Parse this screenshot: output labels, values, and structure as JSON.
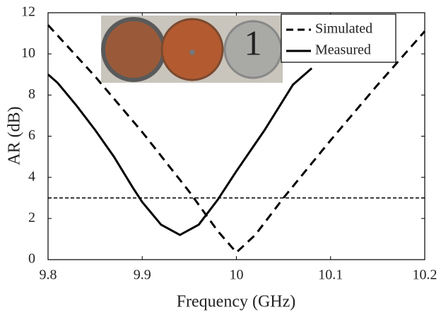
{
  "chart_data": {
    "type": "line",
    "xlabel": "Frequency (GHz)",
    "ylabel": "AR (dB)",
    "xlim": [
      9.8,
      10.2
    ],
    "xticks": [
      9.8,
      9.9,
      10,
      10.1,
      10.2
    ],
    "ylim": [
      0,
      12
    ],
    "yticks": [
      0,
      2,
      4,
      6,
      8,
      10,
      12
    ],
    "hlines": [
      3
    ],
    "legend": "upper-right",
    "series": [
      {
        "name": "Simulated",
        "color": "#000000",
        "dash": true,
        "x": [
          9.8,
          9.85,
          9.9,
          9.95,
          9.98,
          10.0,
          10.02,
          10.05,
          10.1,
          10.15,
          10.2
        ],
        "values": [
          11.4,
          8.9,
          6.2,
          3.3,
          1.4,
          0.35,
          1.2,
          3.0,
          5.8,
          8.5,
          11.1
        ]
      },
      {
        "name": "Measured",
        "color": "#000000",
        "dash": false,
        "x": [
          9.8,
          9.81,
          9.83,
          9.85,
          9.87,
          9.89,
          9.9,
          9.92,
          9.94,
          9.96,
          9.98,
          10.0,
          10.03,
          10.06,
          10.08
        ],
        "values": [
          9.0,
          8.6,
          7.5,
          6.3,
          5.0,
          3.5,
          2.8,
          1.7,
          1.2,
          1.7,
          2.9,
          4.3,
          6.3,
          8.5,
          9.3
        ]
      }
    ]
  }
}
